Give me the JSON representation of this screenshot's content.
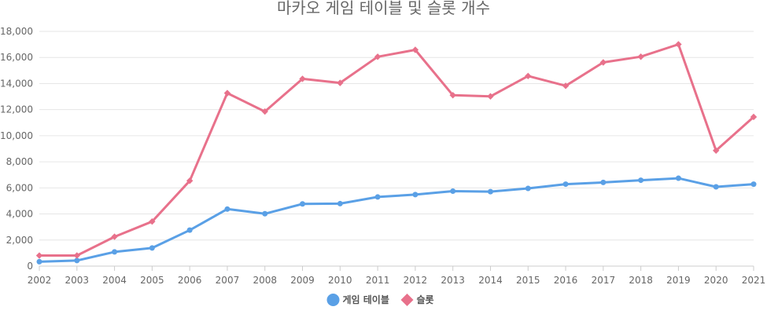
{
  "chart_data": {
    "type": "line",
    "title": "마카오 게임 테이블 및 슬롯 개수",
    "xlabel": "",
    "ylabel": "",
    "x": [
      "2002",
      "2003",
      "2004",
      "2005",
      "2006",
      "2007",
      "2008",
      "2009",
      "2010",
      "2011",
      "2012",
      "2013",
      "2014",
      "2015",
      "2016",
      "2017",
      "2018",
      "2019",
      "2020",
      "2021"
    ],
    "ylim": [
      0,
      18000
    ],
    "yticks": [
      "0",
      "2,000",
      "4,000",
      "6,000",
      "8,000",
      "10,000",
      "12,000",
      "14,000",
      "16,000",
      "18,000"
    ],
    "series": [
      {
        "name": "게임 테이블",
        "color": "#5aa0e6",
        "marker": "circle",
        "values": [
          340,
          430,
          1090,
          1390,
          2760,
          4375,
          4017,
          4770,
          4791,
          5302,
          5485,
          5750,
          5711,
          5957,
          6287,
          6419,
          6588,
          6739,
          6080,
          6285
        ]
      },
      {
        "name": "슬롯",
        "color": "#e8718b",
        "marker": "diamond",
        "values": [
          810,
          814,
          2254,
          3421,
          6546,
          13267,
          11856,
          14363,
          14050,
          16056,
          16585,
          13106,
          13018,
          14578,
          13826,
          15622,
          16059,
          17009,
          8863,
          11439
        ]
      }
    ],
    "grid": true,
    "legend": "bottom-center"
  }
}
